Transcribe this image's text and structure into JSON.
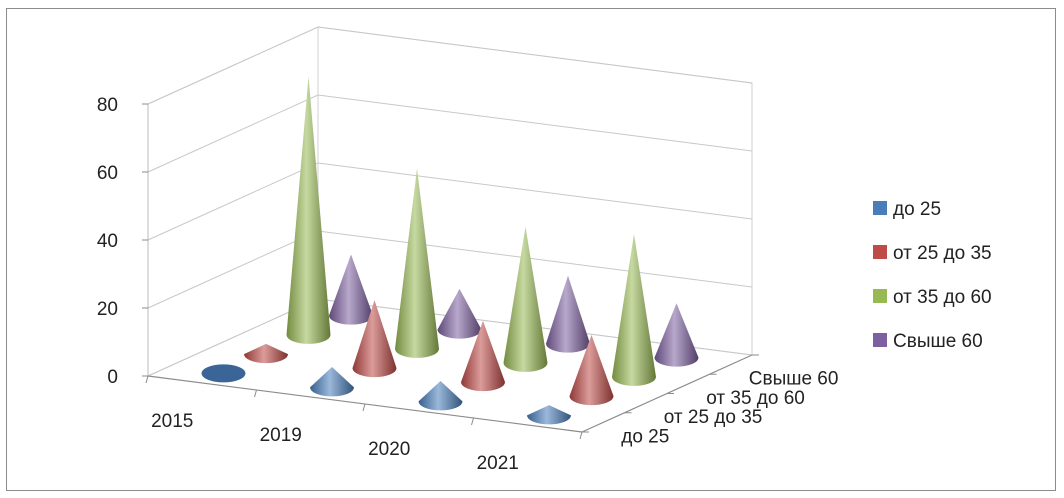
{
  "chart_data": {
    "type": "bar",
    "subtype": "3d-cone",
    "categories": [
      "2015",
      "2019",
      "2020",
      "2021"
    ],
    "series": [
      {
        "name": "до 25",
        "color": "#4a7ebb",
        "values": [
          0,
          6,
          6,
          3
        ]
      },
      {
        "name": "от 25 до 35",
        "color": "#be4b48",
        "values": [
          3,
          20,
          18,
          18
        ]
      },
      {
        "name": "от 35 до 60",
        "color": "#98b954",
        "values": [
          76,
          53,
          40,
          42
        ]
      },
      {
        "name": "Свыше 60",
        "color": "#7d60a0",
        "values": [
          18,
          12,
          20,
          16
        ]
      }
    ],
    "depth_labels": [
      "до 25",
      "от 25 до 35",
      "от 35 до 60",
      "Свыше 60"
    ],
    "yticks": [
      "0",
      "20",
      "40",
      "60",
      "80"
    ],
    "ylim": [
      0,
      80
    ],
    "grid": true,
    "legend_position": "right",
    "title": "",
    "xlabel": "",
    "ylabel": ""
  }
}
